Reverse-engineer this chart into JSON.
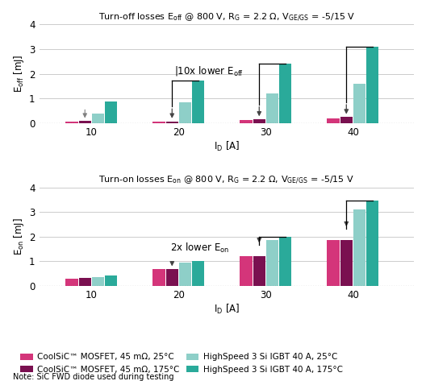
{
  "title1": "Turn-off losses E$_\\mathrm{off}$ @ 800 V, R$_\\mathrm{G}$ = 2.2 Ω, V$_\\mathrm{GE/GS}$ = -5/15 V",
  "title2": "Turn-on losses E$_\\mathrm{on}$ @ 800 V, R$_\\mathrm{G}$ = 2.2 Ω, V$_\\mathrm{GE/GS}$ = -5/15 V",
  "ylabel1": "E$_\\mathrm{off}$ [mJ]",
  "ylabel2": "E$_\\mathrm{on}$ [mJ]",
  "xlabel": "I$_\\mathrm{D}$ [A]",
  "x_ticks": [
    10,
    20,
    30,
    40
  ],
  "ylim": [
    0,
    4
  ],
  "yticks": [
    0,
    1,
    2,
    3,
    4
  ],
  "annotation1": "|10x lower E$_\\mathrm{off}$",
  "annotation2": "2x lower E$_\\mathrm{on}$",
  "colors": {
    "coolsic_25": "#d4357a",
    "coolsic_175": "#7a1050",
    "igbt_25": "#8ecfc8",
    "igbt_175": "#2aaa9a"
  },
  "eoff_data": {
    "coolsic_25": [
      0.06,
      0.05,
      0.12,
      0.2
    ],
    "coolsic_175": [
      0.08,
      0.07,
      0.15,
      0.24
    ],
    "igbt_25": [
      0.4,
      0.85,
      1.2,
      1.58
    ],
    "igbt_175": [
      0.88,
      1.72,
      2.42,
      3.1
    ]
  },
  "eon_data": {
    "coolsic_25": [
      0.3,
      0.7,
      1.22,
      1.88
    ],
    "coolsic_175": [
      0.34,
      0.68,
      1.22,
      1.88
    ],
    "igbt_25": [
      0.35,
      0.95,
      1.88,
      3.12
    ],
    "igbt_175": [
      0.42,
      1.02,
      2.0,
      3.48
    ]
  },
  "legend_labels": [
    "CoolSiC™ MOSFET, 45 mΩ, 25°C",
    "CoolSiC™ MOSFET, 45 mΩ, 175°C",
    "HighSpeed 3 Si IGBT 40 A, 25°C",
    "HighSpeed 3 Si IGBT 40 A, 175°C"
  ],
  "note": "Note: SiC FWD diode used during testing",
  "bg_color": "#ffffff"
}
